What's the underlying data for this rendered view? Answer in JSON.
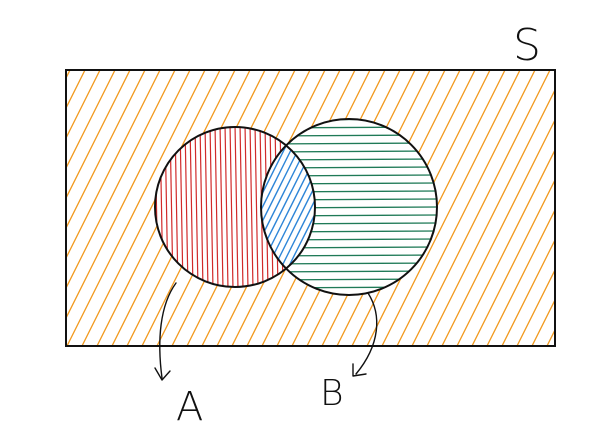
{
  "diagram": {
    "type": "venn",
    "universe_label": "S",
    "sets": [
      {
        "label": "A",
        "hatch_color": "#d12a2a"
      },
      {
        "label": "B",
        "hatch_color": "#1f7a57"
      }
    ],
    "intersection_color": "#2f86d8",
    "complement_color": "#f29a1f",
    "outline_color": "#111111"
  }
}
